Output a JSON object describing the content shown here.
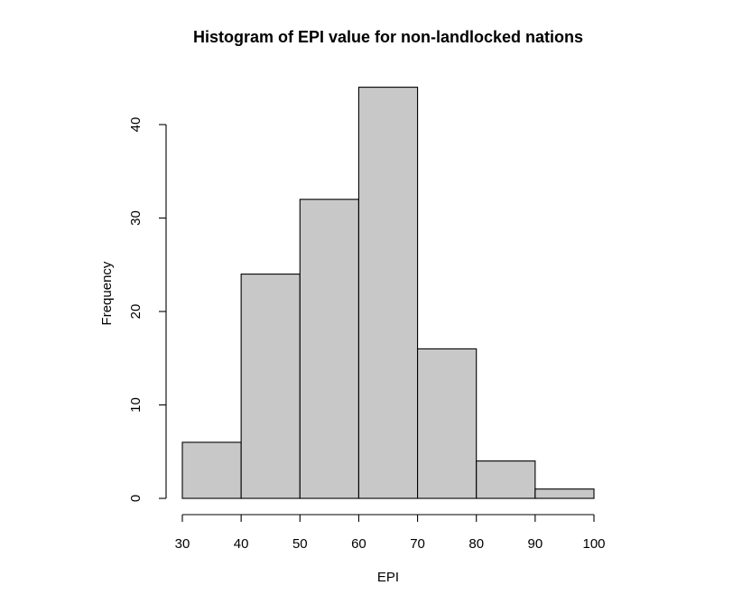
{
  "chart_data": {
    "type": "bar",
    "title": "Histogram of EPI value for non-landlocked nations",
    "xlabel": "EPI",
    "ylabel": "Frequency",
    "bin_edges": [
      30,
      40,
      50,
      60,
      70,
      80,
      90,
      100
    ],
    "values": [
      6,
      24,
      32,
      44,
      16,
      4,
      1
    ],
    "xlim": [
      30,
      100
    ],
    "ylim": [
      0,
      40
    ],
    "x_ticks": [
      30,
      40,
      50,
      60,
      70,
      80,
      90,
      100
    ],
    "y_ticks": [
      0,
      10,
      20,
      30,
      40
    ],
    "bar_color": "#c8c8c8",
    "grid": false
  }
}
